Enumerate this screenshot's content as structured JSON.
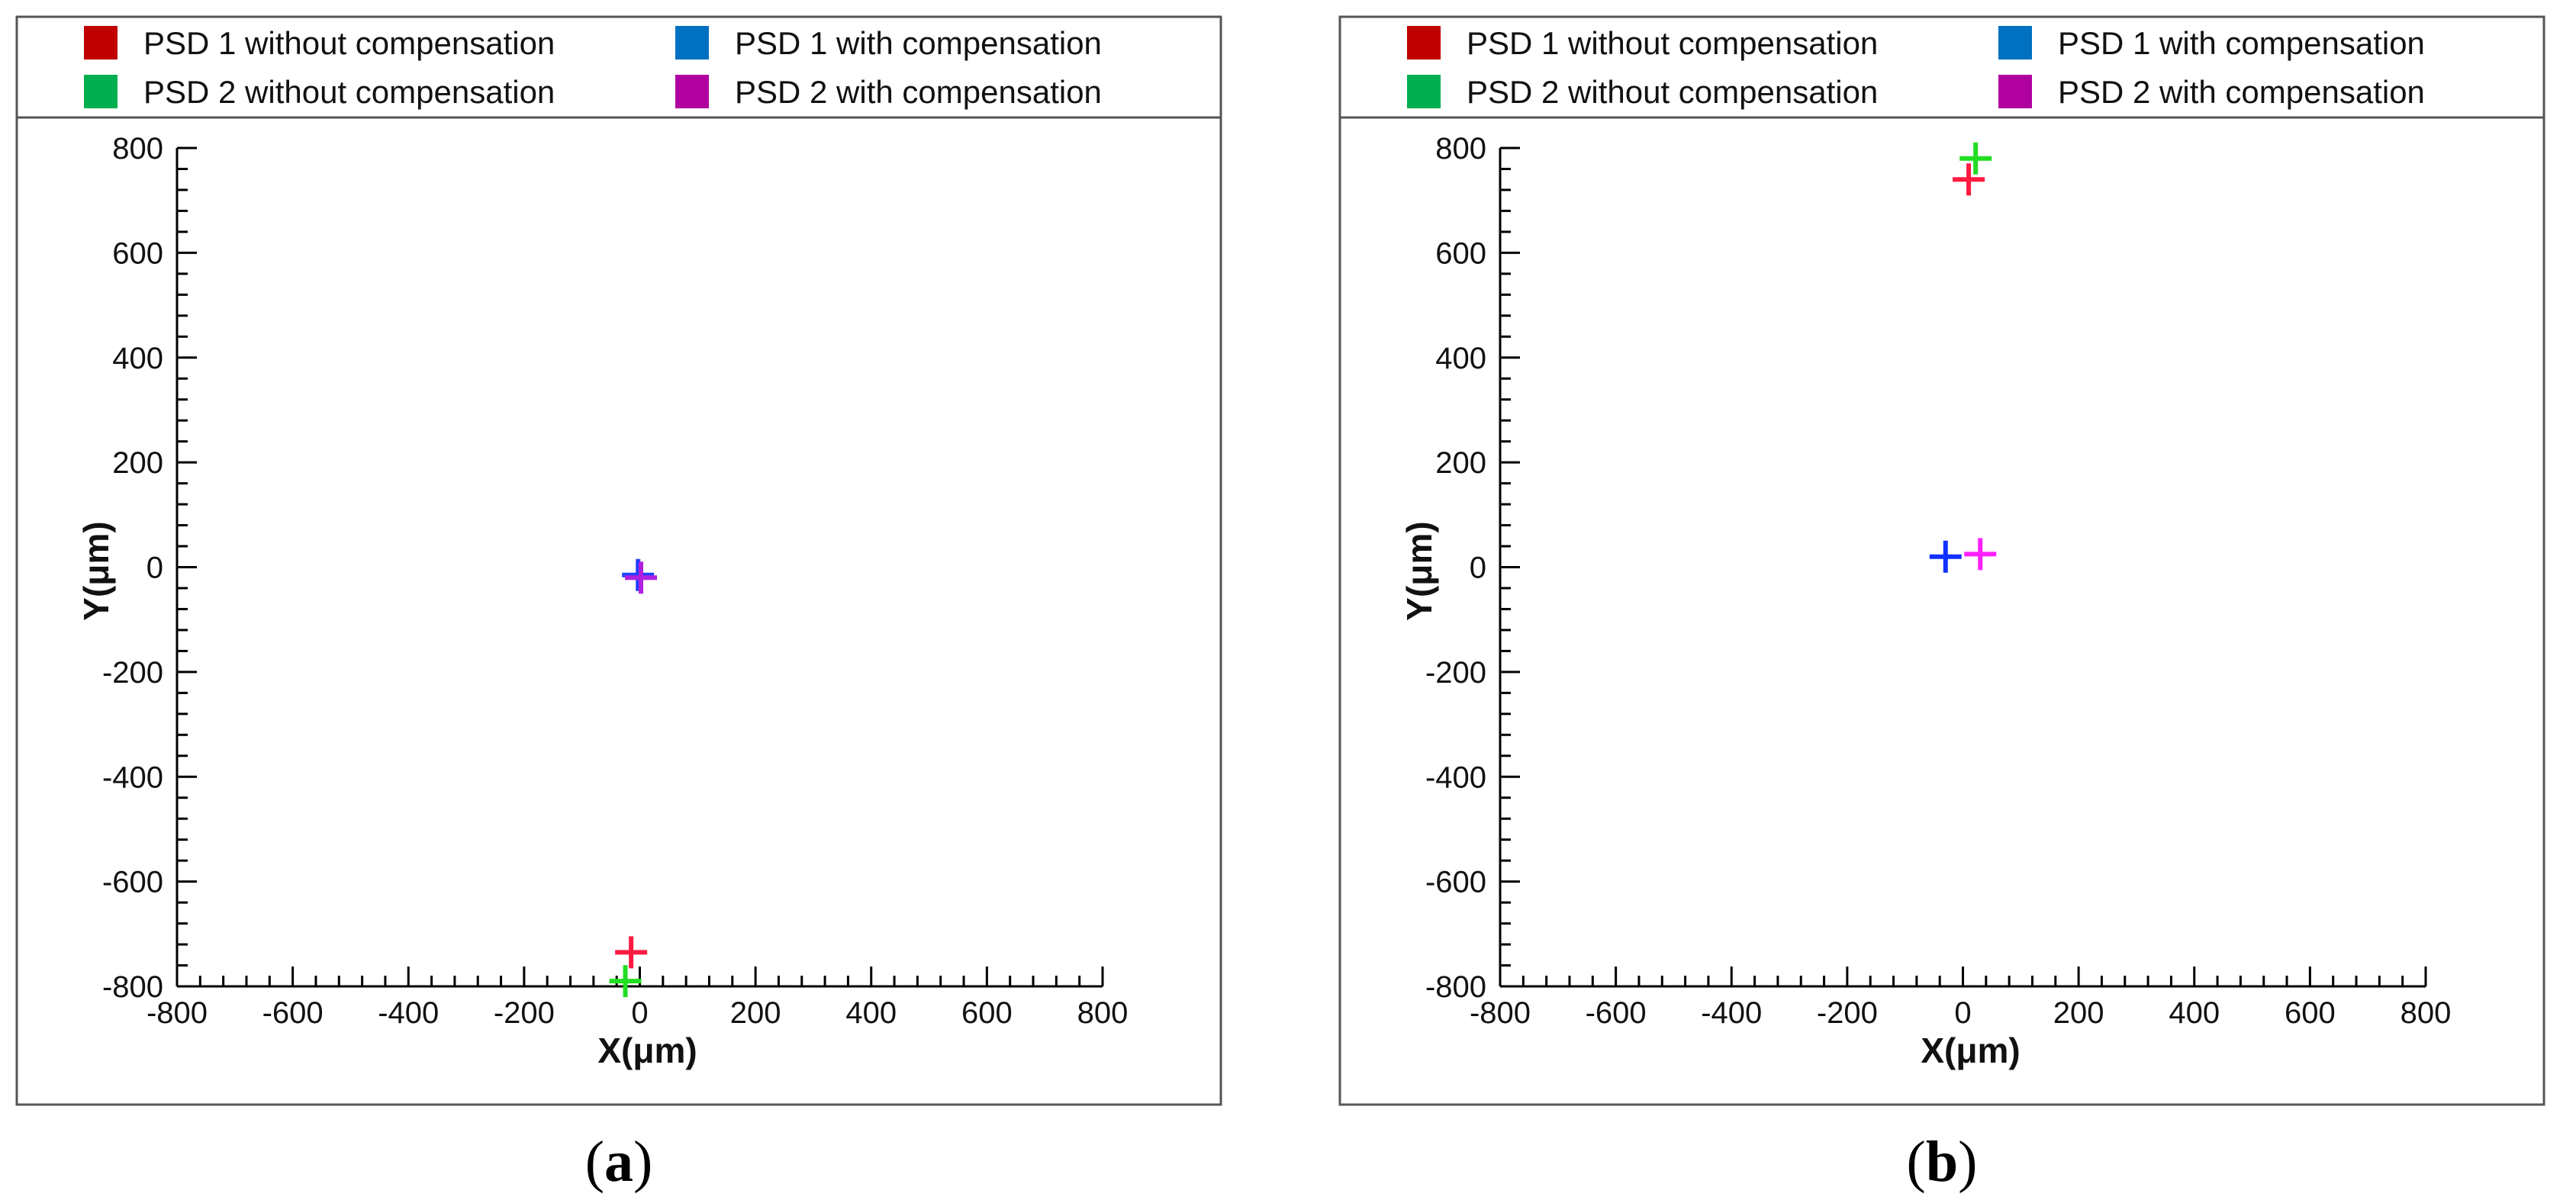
{
  "legend_items": [
    {
      "label": "PSD 1 without compensation",
      "color": "#C00000"
    },
    {
      "label": "PSD 1 with compensation",
      "color": "#0070C0"
    },
    {
      "label": "PSD 2 without compensation",
      "color": "#00B050"
    },
    {
      "label": "PSD 2 with compensation",
      "color": "#B000A0"
    }
  ],
  "chart_data": [
    {
      "type": "scatter",
      "caption": "a",
      "xlabel": "X(μm)",
      "ylabel": "Y(μm)",
      "xlim": [
        -800,
        800
      ],
      "ylim": [
        -800,
        800
      ],
      "xticks": [
        -800,
        -600,
        -400,
        -200,
        0,
        200,
        400,
        600,
        800
      ],
      "yticks": [
        -800,
        -600,
        -400,
        -200,
        0,
        200,
        400,
        600,
        800
      ],
      "grid": false,
      "legend": "top",
      "series": [
        {
          "name": "PSD 1 without compensation",
          "marker_color": "#FF1A40",
          "points": [
            [
              -15,
              -735
            ]
          ]
        },
        {
          "name": "PSD 1 with compensation",
          "marker_color": "#2040FF",
          "points": [
            [
              -3,
              -15
            ]
          ]
        },
        {
          "name": "PSD 2 without compensation",
          "marker_color": "#22DD22",
          "points": [
            [
              -25,
              -790
            ]
          ]
        },
        {
          "name": "PSD 2 with compensation",
          "marker_color": "#B020E0",
          "points": [
            [
              2,
              -20
            ]
          ]
        }
      ]
    },
    {
      "type": "scatter",
      "caption": "b",
      "xlabel": "X(μm)",
      "ylabel": "Y(μm)",
      "xlim": [
        -800,
        800
      ],
      "ylim": [
        -800,
        800
      ],
      "xticks": [
        -800,
        -600,
        -400,
        -200,
        0,
        200,
        400,
        600,
        800
      ],
      "yticks": [
        -800,
        -600,
        -400,
        -200,
        0,
        200,
        400,
        600,
        800
      ],
      "grid": false,
      "legend": "top",
      "series": [
        {
          "name": "PSD 1 without compensation",
          "marker_color": "#FF1A40",
          "points": [
            [
              10,
              740
            ]
          ]
        },
        {
          "name": "PSD 1 with compensation",
          "marker_color": "#1030FF",
          "points": [
            [
              -30,
              20
            ]
          ]
        },
        {
          "name": "PSD 2 without compensation",
          "marker_color": "#22DD22",
          "points": [
            [
              22,
              780
            ]
          ]
        },
        {
          "name": "PSD 2 with compensation",
          "marker_color": "#FF20FF",
          "points": [
            [
              30,
              25
            ]
          ]
        }
      ]
    }
  ]
}
